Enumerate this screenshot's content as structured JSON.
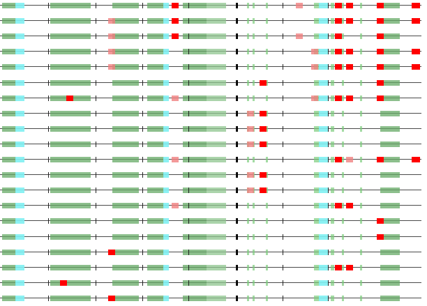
{
  "diagram": {
    "type": "alignment-track-view",
    "track_count": 20,
    "colors": {
      "baseline": "#4a4a4a",
      "block_green": "#66aa66",
      "block_light_green": "#8fc68f",
      "block_cyan": "#7ff0f2",
      "mark_red": "#ff0000",
      "mark_pink": "#f08080",
      "mark_black": "#000000"
    },
    "tracks": [
      {
        "reds": [
          246,
          496,
          540,
          590
        ],
        "pinks": [
          424
        ],
        "reds2": [
          480
        ]
      },
      {
        "reds": [
          246,
          540,
          590
        ],
        "pinks": [
          155
        ],
        "reds2": [
          480,
          496
        ]
      },
      {
        "reds": [
          246,
          540
        ],
        "pinks": [
          155,
          424
        ],
        "reds2": [
          480
        ]
      },
      {
        "reds": [
          540,
          590
        ],
        "pinks": [
          155,
          446
        ],
        "reds2": [
          480,
          496
        ]
      },
      {
        "reds": [
          540,
          590
        ],
        "pinks": [
          155,
          446
        ],
        "reds2": [
          480,
          496
        ]
      },
      {
        "reds": [
          372,
          540
        ],
        "pinks": [],
        "reds2": []
      },
      {
        "reds": [
          95,
          540
        ],
        "pinks": [
          246,
          446
        ],
        "reds2": [
          480,
          496
        ]
      },
      {
        "reds": [
          372
        ],
        "pinks": [
          354
        ],
        "reds2": []
      },
      {
        "reds": [
          372
        ],
        "pinks": [
          354
        ],
        "reds2": []
      },
      {
        "reds": [
          372
        ],
        "pinks": [
          354
        ],
        "reds2": []
      },
      {
        "reds": [
          540,
          590
        ],
        "pinks": [
          246,
          496
        ],
        "reds2": [
          480
        ]
      },
      {
        "reds": [
          372
        ],
        "pinks": [
          354
        ],
        "reds2": []
      },
      {
        "reds": [
          372
        ],
        "pinks": [
          354
        ],
        "reds2": []
      },
      {
        "reds": [],
        "pinks": [
          246
        ],
        "reds2": [
          480,
          496
        ]
      },
      {
        "reds": [
          540
        ],
        "pinks": [],
        "reds2": []
      },
      {
        "reds": [
          540
        ],
        "pinks": [],
        "reds2": []
      },
      {
        "reds": [
          155
        ],
        "pinks": [],
        "reds2": []
      },
      {
        "reds": [],
        "pinks": [],
        "reds2": [
          480,
          496
        ]
      },
      {
        "reds": [
          86
        ],
        "pinks": [],
        "reds2": []
      },
      {
        "reds": [
          155
        ],
        "pinks": [],
        "reds2": []
      }
    ]
  }
}
